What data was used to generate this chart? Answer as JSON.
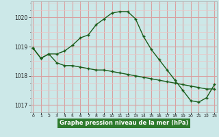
{
  "line1_x": [
    0,
    1,
    2,
    3,
    4,
    5,
    6,
    7,
    8,
    9,
    10,
    11,
    12,
    13,
    14,
    15,
    16,
    17,
    18,
    19,
    20,
    21,
    22,
    23
  ],
  "line1_y": [
    1018.95,
    1018.6,
    1018.75,
    1018.45,
    1018.35,
    1018.35,
    1018.3,
    1018.25,
    1018.2,
    1018.2,
    1018.15,
    1018.1,
    1018.05,
    1018.0,
    1017.95,
    1017.9,
    1017.85,
    1017.8,
    1017.75,
    1017.7,
    1017.65,
    1017.6,
    1017.55,
    1017.55
  ],
  "line2_x": [
    0,
    1,
    2,
    3,
    4,
    5,
    6,
    7,
    8,
    9,
    10,
    11,
    12,
    13,
    14,
    15,
    16,
    17,
    18,
    19,
    20,
    21,
    22,
    23
  ],
  "line2_y": [
    1018.95,
    1018.6,
    1018.75,
    1018.75,
    1018.85,
    1019.05,
    1019.3,
    1019.4,
    1019.75,
    1019.95,
    1020.15,
    1020.2,
    1020.2,
    1019.95,
    1019.35,
    1018.9,
    1018.55,
    1018.2,
    1017.85,
    1017.5,
    1017.15,
    1017.1,
    1017.25,
    1017.7
  ],
  "line_color": "#1a5c1a",
  "bg_color": "#cce8e8",
  "grid_color_major": "#d9a0a0",
  "grid_color_minor": "#e8c8c8",
  "xlabel": "Graphe pression niveau de la mer (hPa)",
  "xlabel_bg": "#2d7a2d",
  "xlabel_color": "#ffffff",
  "ylim": [
    1016.75,
    1020.55
  ],
  "xlim": [
    -0.3,
    23.3
  ],
  "yticks": [
    1017,
    1018,
    1019,
    1020
  ],
  "ytick_minor": 0.25,
  "xtick_labels": [
    "0",
    "1",
    "2",
    "3",
    "4",
    "5",
    "6",
    "7",
    "8",
    "9",
    "10",
    "11",
    "12",
    "13",
    "14",
    "15",
    "16",
    "17",
    "18",
    "19",
    "20",
    "21",
    "22",
    "23"
  ]
}
